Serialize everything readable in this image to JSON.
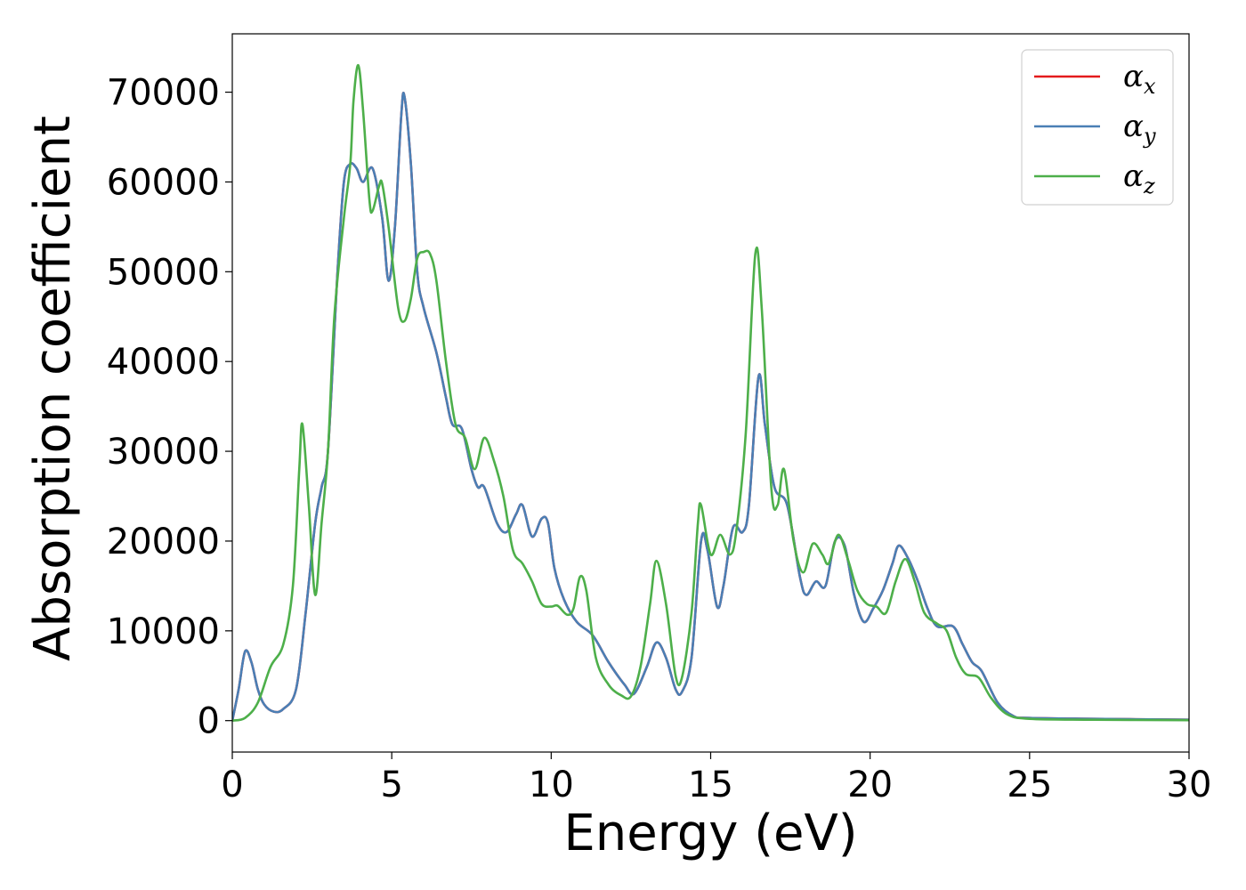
{
  "chart_data": {
    "type": "line",
    "xlabel": "Energy (eV)",
    "ylabel": "Absorption coefficient",
    "xlim": [
      0,
      30
    ],
    "ylim": [
      -3500,
      76500
    ],
    "xticks": [
      0,
      5,
      10,
      15,
      20,
      25,
      30
    ],
    "yticks": [
      0,
      10000,
      20000,
      30000,
      40000,
      50000,
      60000,
      70000
    ],
    "grid": false,
    "legend": "top-right",
    "series": [
      {
        "name": "α_x",
        "base": "α",
        "sub": "x",
        "color": "#e41a1c",
        "points": [
          [
            0,
            0
          ],
          [
            0.2,
            3500
          ],
          [
            0.4,
            7700
          ],
          [
            0.6,
            6500
          ],
          [
            0.8,
            3500
          ],
          [
            1.0,
            1800
          ],
          [
            1.3,
            1000
          ],
          [
            1.6,
            1300
          ],
          [
            2.0,
            3500
          ],
          [
            2.3,
            12000
          ],
          [
            2.6,
            22000
          ],
          [
            2.8,
            26000
          ],
          [
            3.0,
            30000
          ],
          [
            3.3,
            50000
          ],
          [
            3.5,
            60000
          ],
          [
            3.7,
            62000
          ],
          [
            3.9,
            61500
          ],
          [
            4.1,
            60000
          ],
          [
            4.4,
            61500
          ],
          [
            4.7,
            56000
          ],
          [
            4.9,
            49000
          ],
          [
            5.1,
            55000
          ],
          [
            5.3,
            67500
          ],
          [
            5.4,
            69500
          ],
          [
            5.6,
            62000
          ],
          [
            5.8,
            50000
          ],
          [
            6.0,
            46000
          ],
          [
            6.4,
            41000
          ],
          [
            6.7,
            36000
          ],
          [
            6.9,
            33000
          ],
          [
            7.2,
            32500
          ],
          [
            7.5,
            28000
          ],
          [
            7.7,
            26000
          ],
          [
            7.9,
            26000
          ],
          [
            8.3,
            22000
          ],
          [
            8.6,
            21000
          ],
          [
            8.9,
            23000
          ],
          [
            9.1,
            24000
          ],
          [
            9.4,
            20500
          ],
          [
            9.7,
            22500
          ],
          [
            9.9,
            22000
          ],
          [
            10.1,
            17000
          ],
          [
            10.4,
            13500
          ],
          [
            10.8,
            11000
          ],
          [
            11.3,
            9500
          ],
          [
            11.8,
            6500
          ],
          [
            12.3,
            4000
          ],
          [
            12.6,
            3000
          ],
          [
            13.0,
            6000
          ],
          [
            13.3,
            8700
          ],
          [
            13.6,
            7000
          ],
          [
            13.9,
            3500
          ],
          [
            14.1,
            3200
          ],
          [
            14.4,
            7000
          ],
          [
            14.7,
            20000
          ],
          [
            14.9,
            19000
          ],
          [
            15.2,
            12700
          ],
          [
            15.4,
            15000
          ],
          [
            15.7,
            21500
          ],
          [
            16.0,
            21000
          ],
          [
            16.2,
            24000
          ],
          [
            16.5,
            38300
          ],
          [
            16.7,
            33000
          ],
          [
            17.0,
            26000
          ],
          [
            17.4,
            24000
          ],
          [
            17.8,
            16000
          ],
          [
            18.0,
            14000
          ],
          [
            18.3,
            15500
          ],
          [
            18.6,
            15000
          ],
          [
            18.9,
            20000
          ],
          [
            19.2,
            19500
          ],
          [
            19.5,
            14000
          ],
          [
            19.8,
            11000
          ],
          [
            20.1,
            12500
          ],
          [
            20.4,
            14500
          ],
          [
            20.7,
            17500
          ],
          [
            20.9,
            19500
          ],
          [
            21.2,
            18000
          ],
          [
            21.5,
            15500
          ],
          [
            21.8,
            12500
          ],
          [
            22.1,
            10500
          ],
          [
            22.6,
            10500
          ],
          [
            22.9,
            8500
          ],
          [
            23.2,
            6500
          ],
          [
            23.5,
            5500
          ],
          [
            24.0,
            2000
          ],
          [
            24.5,
            500
          ],
          [
            25.0,
            300
          ],
          [
            27.0,
            200
          ],
          [
            30.0,
            100
          ]
        ]
      },
      {
        "name": "α_y",
        "base": "α",
        "sub": "y",
        "color": "#4a7fb5",
        "points": [
          [
            0,
            0
          ],
          [
            0.2,
            3500
          ],
          [
            0.4,
            7700
          ],
          [
            0.6,
            6500
          ],
          [
            0.8,
            3500
          ],
          [
            1.0,
            1800
          ],
          [
            1.3,
            1000
          ],
          [
            1.6,
            1300
          ],
          [
            2.0,
            3500
          ],
          [
            2.3,
            12000
          ],
          [
            2.6,
            22000
          ],
          [
            2.8,
            26000
          ],
          [
            3.0,
            30000
          ],
          [
            3.3,
            50000
          ],
          [
            3.5,
            60000
          ],
          [
            3.7,
            62000
          ],
          [
            3.9,
            61500
          ],
          [
            4.1,
            60000
          ],
          [
            4.4,
            61500
          ],
          [
            4.7,
            56000
          ],
          [
            4.9,
            49000
          ],
          [
            5.1,
            55000
          ],
          [
            5.3,
            67500
          ],
          [
            5.4,
            69500
          ],
          [
            5.6,
            62000
          ],
          [
            5.8,
            50000
          ],
          [
            6.0,
            46000
          ],
          [
            6.4,
            41000
          ],
          [
            6.7,
            36000
          ],
          [
            6.9,
            33000
          ],
          [
            7.2,
            32500
          ],
          [
            7.5,
            28000
          ],
          [
            7.7,
            26000
          ],
          [
            7.9,
            26000
          ],
          [
            8.3,
            22000
          ],
          [
            8.6,
            21000
          ],
          [
            8.9,
            23000
          ],
          [
            9.1,
            24000
          ],
          [
            9.4,
            20500
          ],
          [
            9.7,
            22500
          ],
          [
            9.9,
            22000
          ],
          [
            10.1,
            17000
          ],
          [
            10.4,
            13500
          ],
          [
            10.8,
            11000
          ],
          [
            11.3,
            9500
          ],
          [
            11.8,
            6500
          ],
          [
            12.3,
            4000
          ],
          [
            12.6,
            3000
          ],
          [
            13.0,
            6000
          ],
          [
            13.3,
            8700
          ],
          [
            13.6,
            7000
          ],
          [
            13.9,
            3500
          ],
          [
            14.1,
            3200
          ],
          [
            14.4,
            7000
          ],
          [
            14.7,
            20000
          ],
          [
            14.9,
            19000
          ],
          [
            15.2,
            12700
          ],
          [
            15.4,
            15000
          ],
          [
            15.7,
            21500
          ],
          [
            16.0,
            21000
          ],
          [
            16.2,
            24000
          ],
          [
            16.5,
            38300
          ],
          [
            16.7,
            33000
          ],
          [
            17.0,
            26000
          ],
          [
            17.4,
            24000
          ],
          [
            17.8,
            16000
          ],
          [
            18.0,
            14000
          ],
          [
            18.3,
            15500
          ],
          [
            18.6,
            15000
          ],
          [
            18.9,
            20000
          ],
          [
            19.2,
            19500
          ],
          [
            19.5,
            14000
          ],
          [
            19.8,
            11000
          ],
          [
            20.1,
            12500
          ],
          [
            20.4,
            14500
          ],
          [
            20.7,
            17500
          ],
          [
            20.9,
            19500
          ],
          [
            21.2,
            18000
          ],
          [
            21.5,
            15500
          ],
          [
            21.8,
            12500
          ],
          [
            22.1,
            10500
          ],
          [
            22.6,
            10500
          ],
          [
            22.9,
            8500
          ],
          [
            23.2,
            6500
          ],
          [
            23.5,
            5500
          ],
          [
            24.0,
            2000
          ],
          [
            24.5,
            500
          ],
          [
            25.0,
            300
          ],
          [
            27.0,
            200
          ],
          [
            30.0,
            100
          ]
        ]
      },
      {
        "name": "α_z",
        "base": "α",
        "sub": "z",
        "color": "#4daf4a",
        "points": [
          [
            0,
            0
          ],
          [
            0.4,
            300
          ],
          [
            0.8,
            2000
          ],
          [
            1.2,
            6000
          ],
          [
            1.6,
            8500
          ],
          [
            1.9,
            15000
          ],
          [
            2.1,
            28000
          ],
          [
            2.2,
            33000
          ],
          [
            2.4,
            24000
          ],
          [
            2.6,
            14000
          ],
          [
            2.8,
            22000
          ],
          [
            3.0,
            30000
          ],
          [
            3.2,
            45000
          ],
          [
            3.5,
            56000
          ],
          [
            3.7,
            62000
          ],
          [
            3.8,
            69000
          ],
          [
            3.95,
            73000
          ],
          [
            4.1,
            68000
          ],
          [
            4.3,
            58000
          ],
          [
            4.4,
            56800
          ],
          [
            4.6,
            59500
          ],
          [
            4.7,
            59800
          ],
          [
            4.9,
            55000
          ],
          [
            5.2,
            46000
          ],
          [
            5.4,
            44500
          ],
          [
            5.6,
            47000
          ],
          [
            5.8,
            51500
          ],
          [
            6.0,
            52200
          ],
          [
            6.2,
            52000
          ],
          [
            6.4,
            49000
          ],
          [
            6.7,
            40000
          ],
          [
            7.0,
            33000
          ],
          [
            7.3,
            31500
          ],
          [
            7.6,
            28000
          ],
          [
            7.9,
            31500
          ],
          [
            8.2,
            29000
          ],
          [
            8.5,
            25000
          ],
          [
            8.8,
            19000
          ],
          [
            9.1,
            17500
          ],
          [
            9.4,
            15500
          ],
          [
            9.7,
            13000
          ],
          [
            10.0,
            12700
          ],
          [
            10.2,
            12800
          ],
          [
            10.5,
            11800
          ],
          [
            10.7,
            12500
          ],
          [
            10.9,
            16000
          ],
          [
            11.1,
            14500
          ],
          [
            11.4,
            7000
          ],
          [
            11.8,
            4000
          ],
          [
            12.2,
            2800
          ],
          [
            12.5,
            2700
          ],
          [
            12.8,
            6000
          ],
          [
            13.1,
            13000
          ],
          [
            13.3,
            17800
          ],
          [
            13.6,
            13000
          ],
          [
            13.9,
            5000
          ],
          [
            14.1,
            4800
          ],
          [
            14.4,
            12000
          ],
          [
            14.6,
            22000
          ],
          [
            14.7,
            24000
          ],
          [
            15.0,
            18500
          ],
          [
            15.3,
            20700
          ],
          [
            15.6,
            18500
          ],
          [
            15.8,
            21000
          ],
          [
            16.1,
            32000
          ],
          [
            16.4,
            52000
          ],
          [
            16.6,
            46000
          ],
          [
            16.9,
            26000
          ],
          [
            17.1,
            24000
          ],
          [
            17.3,
            28000
          ],
          [
            17.6,
            20000
          ],
          [
            17.9,
            16500
          ],
          [
            18.2,
            19700
          ],
          [
            18.5,
            18500
          ],
          [
            18.7,
            17500
          ],
          [
            19.0,
            20700
          ],
          [
            19.3,
            18000
          ],
          [
            19.6,
            14500
          ],
          [
            19.9,
            13000
          ],
          [
            20.2,
            12700
          ],
          [
            20.5,
            12000
          ],
          [
            20.8,
            15500
          ],
          [
            21.1,
            18000
          ],
          [
            21.4,
            15500
          ],
          [
            21.7,
            12000
          ],
          [
            22.1,
            10800
          ],
          [
            22.4,
            10000
          ],
          [
            22.7,
            7000
          ],
          [
            23.0,
            5200
          ],
          [
            23.4,
            4800
          ],
          [
            23.8,
            2500
          ],
          [
            24.3,
            700
          ],
          [
            25.0,
            200
          ],
          [
            27.0,
            100
          ],
          [
            30.0,
            50
          ]
        ]
      }
    ]
  }
}
